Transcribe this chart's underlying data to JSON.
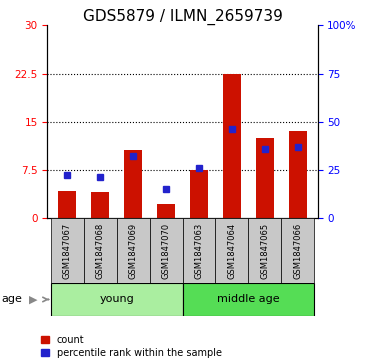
{
  "title": "GDS5879 / ILMN_2659739",
  "samples": [
    "GSM1847067",
    "GSM1847068",
    "GSM1847069",
    "GSM1847070",
    "GSM1847063",
    "GSM1847064",
    "GSM1847065",
    "GSM1847066"
  ],
  "count_values": [
    4.2,
    4.0,
    10.5,
    2.2,
    7.5,
    22.5,
    12.5,
    13.5
  ],
  "percentile_values": [
    22,
    21,
    32,
    15,
    26,
    46,
    36,
    37
  ],
  "left_ylim": [
    0,
    30
  ],
  "right_ylim": [
    0,
    100
  ],
  "left_yticks": [
    0,
    7.5,
    15,
    22.5,
    30
  ],
  "left_yticklabels": [
    "0",
    "7.5",
    "15",
    "22.5",
    "30"
  ],
  "right_yticks": [
    0,
    25,
    50,
    75,
    100
  ],
  "right_yticklabels": [
    "0",
    "25",
    "50",
    "75",
    "100%"
  ],
  "bar_color": "#CC1100",
  "percentile_color": "#2222CC",
  "group_bg_young": "#AAEEA0",
  "group_bg_middle": "#55DD55",
  "sample_bg": "#C8C8C8",
  "age_label": "age",
  "legend_count": "count",
  "legend_percentile": "percentile rank within the sample",
  "title_fontsize": 11,
  "tick_fontsize": 7.5,
  "label_fontsize": 8,
  "young_label": "young",
  "middle_label": "middle age"
}
